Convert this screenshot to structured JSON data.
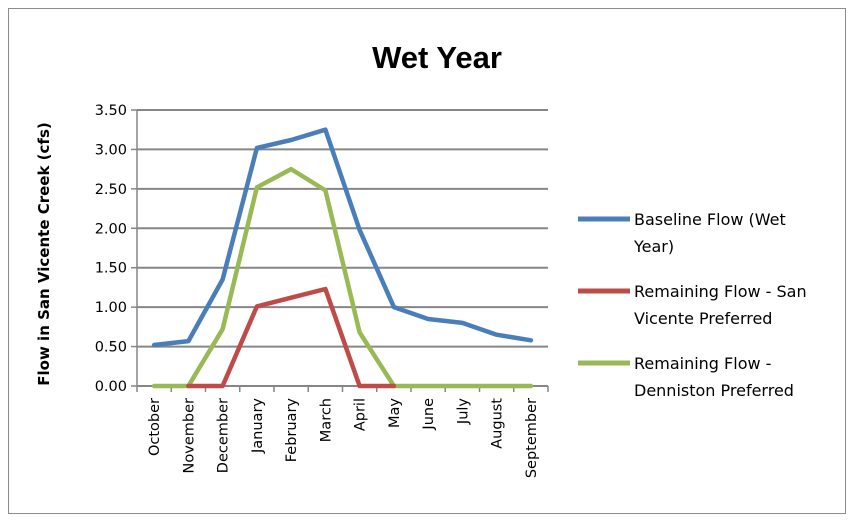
{
  "chart_data": {
    "type": "line",
    "title": "Wet Year",
    "xlabel": "",
    "ylabel": "Flow in San Vicente Creek (cfs)",
    "ylim": [
      0,
      3.5
    ],
    "yticks": [
      "0.00",
      "0.50",
      "1.00",
      "1.50",
      "2.00",
      "2.50",
      "3.00",
      "3.50"
    ],
    "grid": "horizontal",
    "legend_position": "right",
    "categories": [
      "October",
      "November",
      "December",
      "January",
      "February",
      "March",
      "April",
      "May",
      "June",
      "July",
      "August",
      "September"
    ],
    "series": [
      {
        "name": "Baseline Flow (Wet Year)",
        "legend_lines": [
          "Baseline Flow (Wet",
          "Year)"
        ],
        "color": "#4a7ebb",
        "values": [
          0.52,
          0.57,
          1.35,
          3.02,
          3.12,
          3.25,
          1.98,
          1.0,
          0.85,
          0.8,
          0.65,
          0.58
        ]
      },
      {
        "name": "Remaining Flow - San Vicente Preferred",
        "legend_lines": [
          "Remaining Flow - San",
          "Vicente Preferred"
        ],
        "color": "#be4b48",
        "values": [
          null,
          0.0,
          0.0,
          1.01,
          1.12,
          1.23,
          0.0,
          0.0,
          null,
          null,
          null,
          null
        ]
      },
      {
        "name": "Remaining Flow - Denniston Preferred",
        "legend_lines": [
          "Remaining Flow -",
          "Denniston Preferred"
        ],
        "color": "#98b954",
        "values": [
          0.0,
          0.0,
          0.72,
          2.52,
          2.75,
          2.48,
          0.68,
          0.0,
          0.0,
          0.0,
          0.0,
          0.0
        ]
      }
    ]
  }
}
